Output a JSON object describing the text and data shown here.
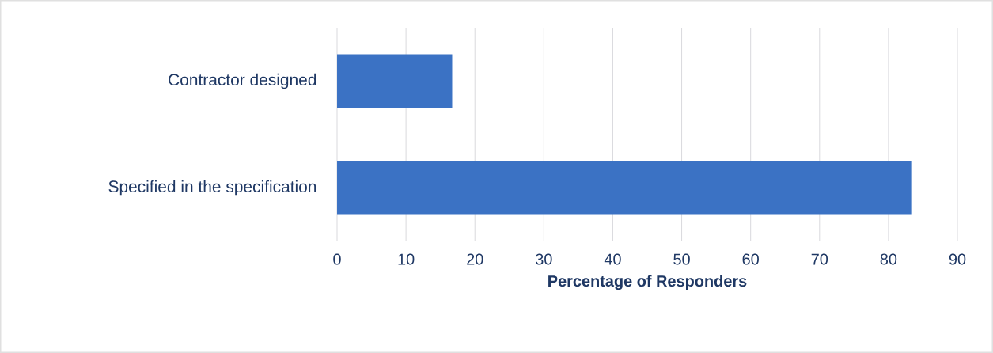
{
  "chart_data": {
    "type": "bar",
    "orientation": "horizontal",
    "categories": [
      "Contractor designed",
      "Specified in the specification"
    ],
    "values": [
      16.7,
      83.3
    ],
    "color": "#3b72c4",
    "xlabel": "Percentage of Responders",
    "xlim": [
      0,
      90
    ],
    "xticks": [
      0,
      10,
      20,
      30,
      40,
      50,
      60,
      70,
      80,
      90
    ],
    "grid": "x"
  }
}
